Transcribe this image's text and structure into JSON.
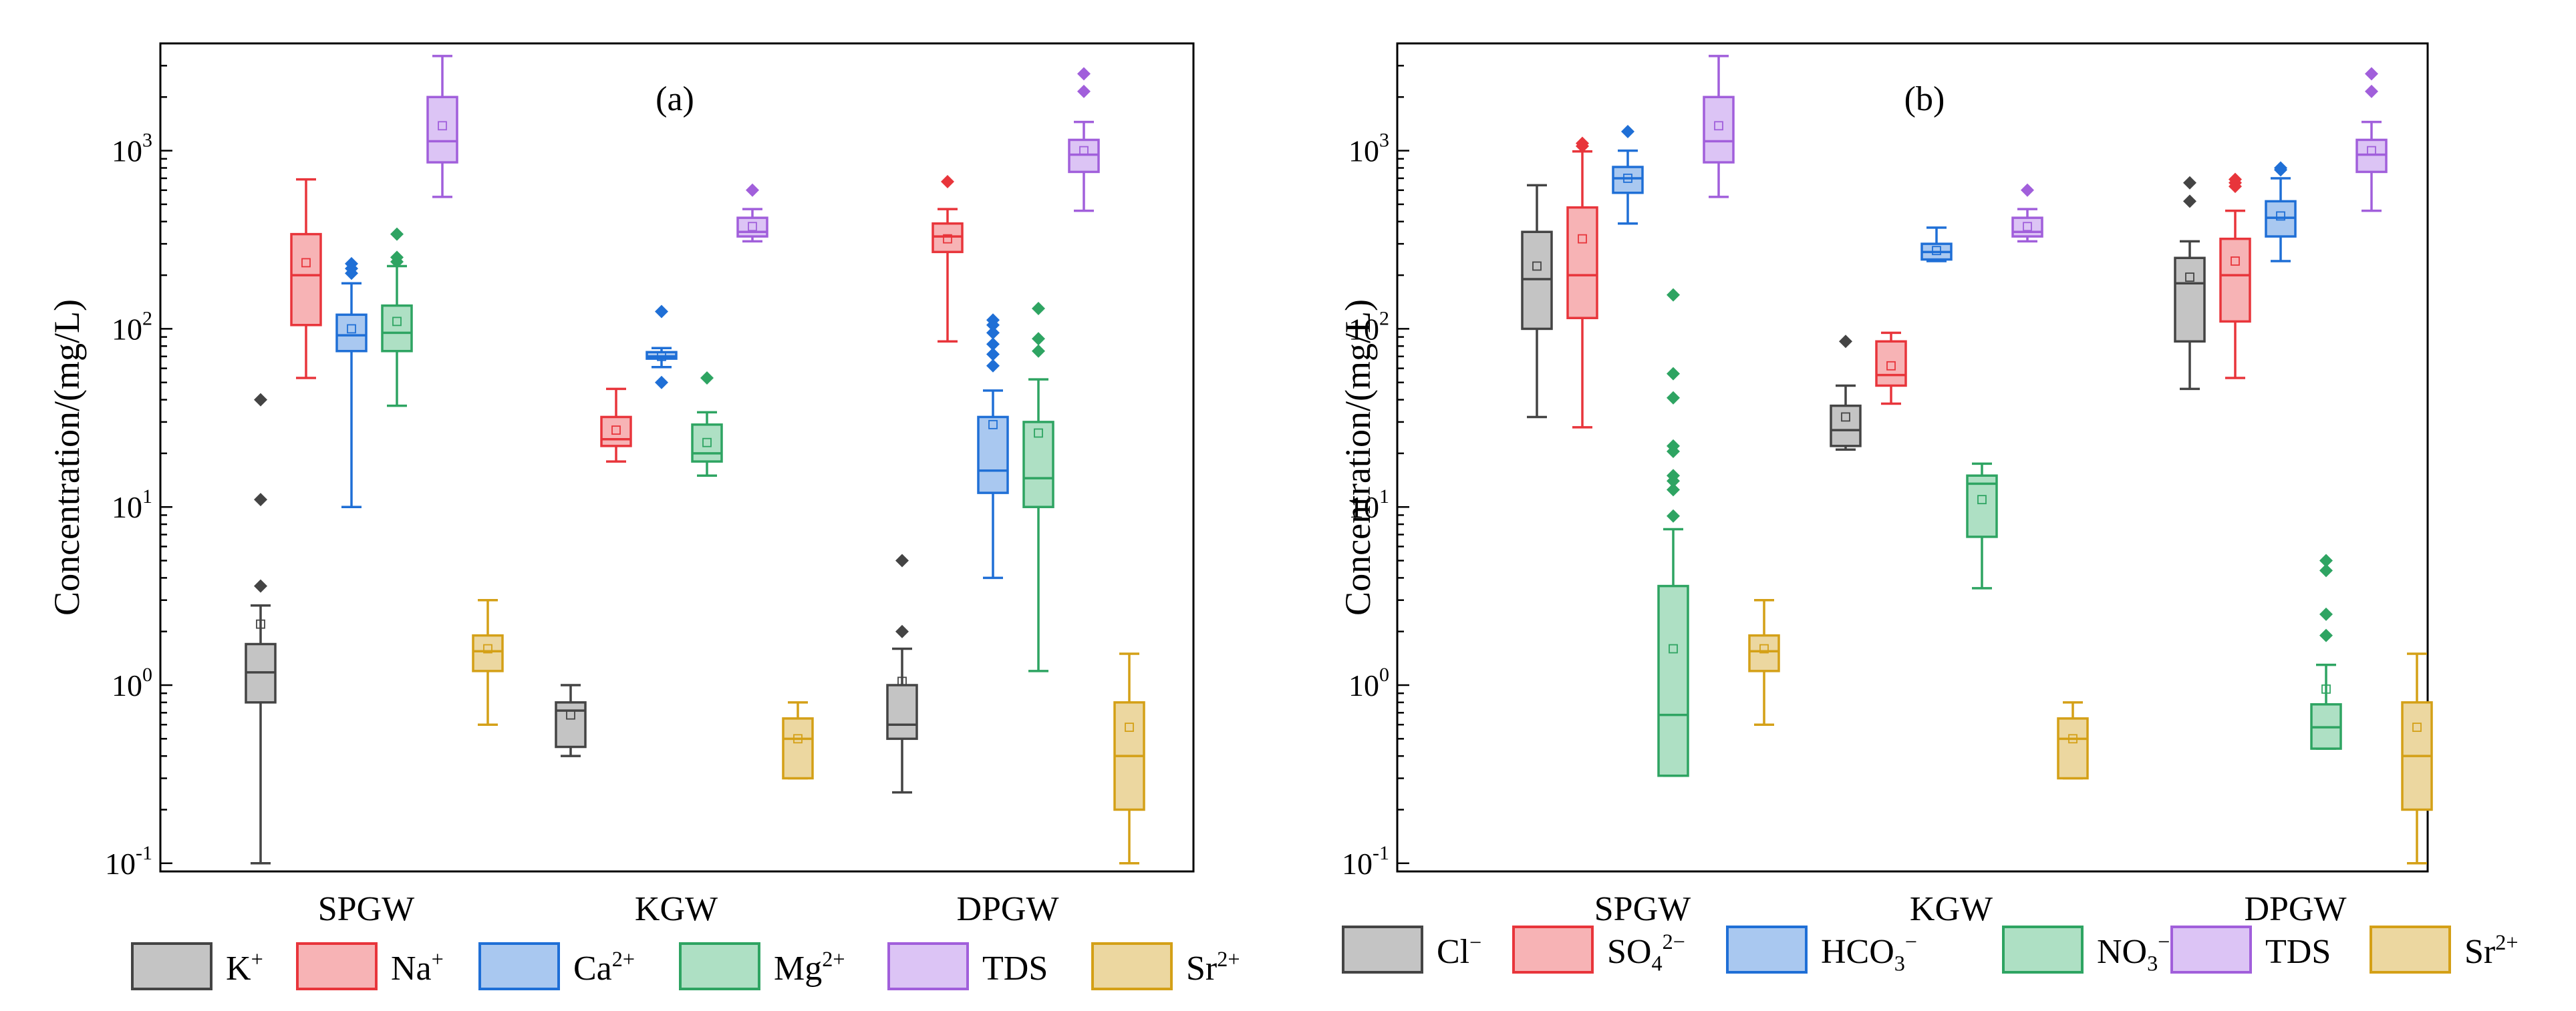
{
  "chart_data": [
    {
      "type": "box",
      "panel_label": "(a)",
      "ylabel": "Concentration/(mg/L)",
      "yscale": "log",
      "ylim": [
        0.09,
        4000
      ],
      "y_tick_labels": [
        {
          "base": "10",
          "exp": "-1",
          "value": 0.1
        },
        {
          "base": "10",
          "exp": "0",
          "value": 1
        },
        {
          "base": "10",
          "exp": "1",
          "value": 10
        },
        {
          "base": "10",
          "exp": "2",
          "value": 100
        },
        {
          "base": "10",
          "exp": "3",
          "value": 1000
        }
      ],
      "groups": [
        "SPGW",
        "KGW",
        "DPGW"
      ],
      "series": [
        {
          "name": "K",
          "sup": "+",
          "sub": "",
          "color": "#444444",
          "fill": "#c4c4c4",
          "stats": [
            {
              "min": 0.1,
              "q1": 0.8,
              "median": 1.18,
              "q3": 1.7,
              "max": 2.8,
              "mean": 2.2,
              "outliers": [
                3.6,
                11,
                40
              ]
            },
            {
              "min": 0.4,
              "q1": 0.45,
              "median": 0.72,
              "q3": 0.8,
              "max": 1.0,
              "mean": 0.68,
              "outliers": []
            },
            {
              "min": 0.25,
              "q1": 0.5,
              "median": 0.6,
              "q3": 1.0,
              "max": 1.6,
              "mean": 1.05,
              "outliers": [
                2.0,
                5.0
              ]
            }
          ]
        },
        {
          "name": "Na",
          "sup": "+",
          "sub": "",
          "color": "#e8353b",
          "fill": "#f7b3b5",
          "stats": [
            {
              "min": 53,
              "q1": 105,
              "median": 200,
              "q3": 340,
              "max": 690,
              "mean": 235,
              "outliers": []
            },
            {
              "min": 18,
              "q1": 22,
              "median": 24,
              "q3": 32,
              "max": 46,
              "mean": 27,
              "outliers": []
            },
            {
              "min": 85,
              "q1": 270,
              "median": 330,
              "q3": 390,
              "max": 470,
              "mean": 320,
              "outliers": [
                670
              ]
            }
          ]
        },
        {
          "name": "Ca",
          "sup": "2+",
          "sub": "",
          "color": "#1f6fd6",
          "fill": "#a9c8f0",
          "stats": [
            {
              "min": 10,
              "q1": 75,
              "median": 92,
              "q3": 120,
              "max": 180,
              "mean": 100,
              "outliers": [
                205,
                218,
                232
              ]
            },
            {
              "min": 61,
              "q1": 68,
              "median": 70,
              "q3": 74,
              "max": 78,
              "mean": 70,
              "outliers": [
                50,
                125
              ]
            },
            {
              "min": 4,
              "q1": 12,
              "median": 16,
              "q3": 32,
              "max": 45,
              "mean": 29,
              "outliers": [
                62,
                72,
                82,
                95,
                105,
                112
              ]
            }
          ]
        },
        {
          "name": "Mg",
          "sup": "2+",
          "sub": "",
          "color": "#2ea462",
          "fill": "#aee0c4",
          "stats": [
            {
              "min": 37,
              "q1": 75,
              "median": 95,
              "q3": 135,
              "max": 225,
              "mean": 110,
              "outliers": [
                238,
                252,
                340
              ]
            },
            {
              "min": 15,
              "q1": 18,
              "median": 20,
              "q3": 29,
              "max": 34,
              "mean": 23,
              "outliers": [
                53
              ]
            },
            {
              "min": 1.2,
              "q1": 10,
              "median": 14.5,
              "q3": 30,
              "max": 52,
              "mean": 26,
              "outliers": [
                75,
                88,
                130
              ]
            }
          ]
        },
        {
          "name": "TDS",
          "sup": "",
          "sub": "",
          "color": "#a15fdb",
          "fill": "#dcc4f5",
          "stats": [
            {
              "min": 550,
              "q1": 860,
              "median": 1130,
              "q3": 2000,
              "max": 3400,
              "mean": 1380,
              "outliers": []
            },
            {
              "min": 310,
              "q1": 330,
              "median": 350,
              "q3": 420,
              "max": 470,
              "mean": 375,
              "outliers": [
                600
              ]
            },
            {
              "min": 460,
              "q1": 760,
              "median": 950,
              "q3": 1150,
              "max": 1450,
              "mean": 1000,
              "outliers": [
                2150,
                2700
              ]
            }
          ]
        },
        {
          "name": "Sr",
          "sup": "2+",
          "sub": "",
          "color": "#d4a017",
          "fill": "#ecd7a0",
          "stats": [
            {
              "min": 0.6,
              "q1": 1.2,
              "median": 1.55,
              "q3": 1.9,
              "max": 3.0,
              "mean": 1.6,
              "outliers": []
            },
            {
              "min": 0.3,
              "q1": 0.3,
              "median": 0.5,
              "q3": 0.65,
              "max": 0.8,
              "mean": 0.5,
              "outliers": []
            },
            {
              "min": 0.1,
              "q1": 0.2,
              "median": 0.4,
              "q3": 0.8,
              "max": 1.5,
              "mean": 0.58,
              "outliers": []
            }
          ]
        }
      ]
    },
    {
      "type": "box",
      "panel_label": "(b)",
      "ylabel": "Concentration/(mg/L)",
      "yscale": "log",
      "ylim": [
        0.09,
        4000
      ],
      "y_tick_labels": [
        {
          "base": "10",
          "exp": "-1",
          "value": 0.1
        },
        {
          "base": "10",
          "exp": "0",
          "value": 1
        },
        {
          "base": "10",
          "exp": "1",
          "value": 10
        },
        {
          "base": "10",
          "exp": "2",
          "value": 100
        },
        {
          "base": "10",
          "exp": "3",
          "value": 1000
        }
      ],
      "groups": [
        "SPGW",
        "KGW",
        "DPGW"
      ],
      "series": [
        {
          "name": "Cl",
          "sup": "−",
          "sub": "",
          "color": "#444444",
          "fill": "#c4c4c4",
          "stats": [
            {
              "min": 32,
              "q1": 100,
              "median": 190,
              "q3": 350,
              "max": 640,
              "mean": 225,
              "outliers": []
            },
            {
              "min": 21,
              "q1": 22,
              "median": 27,
              "q3": 37,
              "max": 48,
              "mean": 32,
              "outliers": [
                85
              ]
            },
            {
              "min": 46,
              "q1": 85,
              "median": 180,
              "q3": 250,
              "max": 310,
              "mean": 195,
              "outliers": [
                520,
                660
              ]
            }
          ]
        },
        {
          "name": "SO",
          "sup": "2−",
          "sub": "4",
          "color": "#e8353b",
          "fill": "#f7b3b5",
          "stats": [
            {
              "min": 28,
              "q1": 115,
              "median": 200,
              "q3": 480,
              "max": 990,
              "mean": 320,
              "outliers": [
                1060,
                1100
              ]
            },
            {
              "min": 38,
              "q1": 48,
              "median": 55,
              "q3": 85,
              "max": 95,
              "mean": 62,
              "outliers": []
            },
            {
              "min": 53,
              "q1": 110,
              "median": 200,
              "q3": 320,
              "max": 460,
              "mean": 240,
              "outliers": [
                630,
                660,
                690
              ]
            }
          ]
        },
        {
          "name": "HCO",
          "sup": "−",
          "sub": "3",
          "color": "#1f6fd6",
          "fill": "#a9c8f0",
          "stats": [
            {
              "min": 390,
              "q1": 580,
              "median": 700,
              "q3": 810,
              "max": 1000,
              "mean": 700,
              "outliers": [
                1280
              ]
            },
            {
              "min": 240,
              "q1": 245,
              "median": 270,
              "q3": 300,
              "max": 370,
              "mean": 275,
              "outliers": []
            },
            {
              "min": 240,
              "q1": 330,
              "median": 420,
              "q3": 520,
              "max": 700,
              "mean": 430,
              "outliers": [
                780,
                800
              ]
            }
          ]
        },
        {
          "name": "NO",
          "sup": "−",
          "sub": "3",
          "color": "#2ea462",
          "fill": "#aee0c4",
          "stats": [
            {
              "min": 0.31,
              "q1": 0.31,
              "median": 0.68,
              "q3": 3.6,
              "max": 7.5,
              "mean": 1.6,
              "outliers": [
                8.9,
                12.5,
                14,
                15,
                20.5,
                22,
                41,
                56,
                155
              ]
            },
            {
              "min": 3.5,
              "q1": 6.8,
              "median": 13.5,
              "q3": 15,
              "max": 17.5,
              "mean": 11,
              "outliers": []
            },
            {
              "min": 0.44,
              "q1": 0.44,
              "median": 0.58,
              "q3": 0.78,
              "max": 1.3,
              "mean": 0.95,
              "outliers": [
                1.9,
                2.5,
                4.4,
                5.0
              ]
            }
          ]
        },
        {
          "name": "TDS",
          "sup": "",
          "sub": "",
          "color": "#a15fdb",
          "fill": "#dcc4f5",
          "stats": [
            {
              "min": 550,
              "q1": 860,
              "median": 1130,
              "q3": 2000,
              "max": 3400,
              "mean": 1380,
              "outliers": []
            },
            {
              "min": 310,
              "q1": 330,
              "median": 350,
              "q3": 420,
              "max": 470,
              "mean": 375,
              "outliers": [
                600
              ]
            },
            {
              "min": 460,
              "q1": 760,
              "median": 950,
              "q3": 1150,
              "max": 1450,
              "mean": 1000,
              "outliers": [
                2150,
                2700
              ]
            }
          ]
        },
        {
          "name": "Sr",
          "sup": "2+",
          "sub": "",
          "color": "#d4a017",
          "fill": "#ecd7a0",
          "stats": [
            {
              "min": 0.6,
              "q1": 1.2,
              "median": 1.55,
              "q3": 1.9,
              "max": 3.0,
              "mean": 1.6,
              "outliers": []
            },
            {
              "min": 0.3,
              "q1": 0.3,
              "median": 0.5,
              "q3": 0.65,
              "max": 0.8,
              "mean": 0.5,
              "outliers": []
            },
            {
              "min": 0.1,
              "q1": 0.2,
              "median": 0.4,
              "q3": 0.8,
              "max": 1.5,
              "mean": 0.58,
              "outliers": []
            }
          ]
        }
      ]
    }
  ]
}
